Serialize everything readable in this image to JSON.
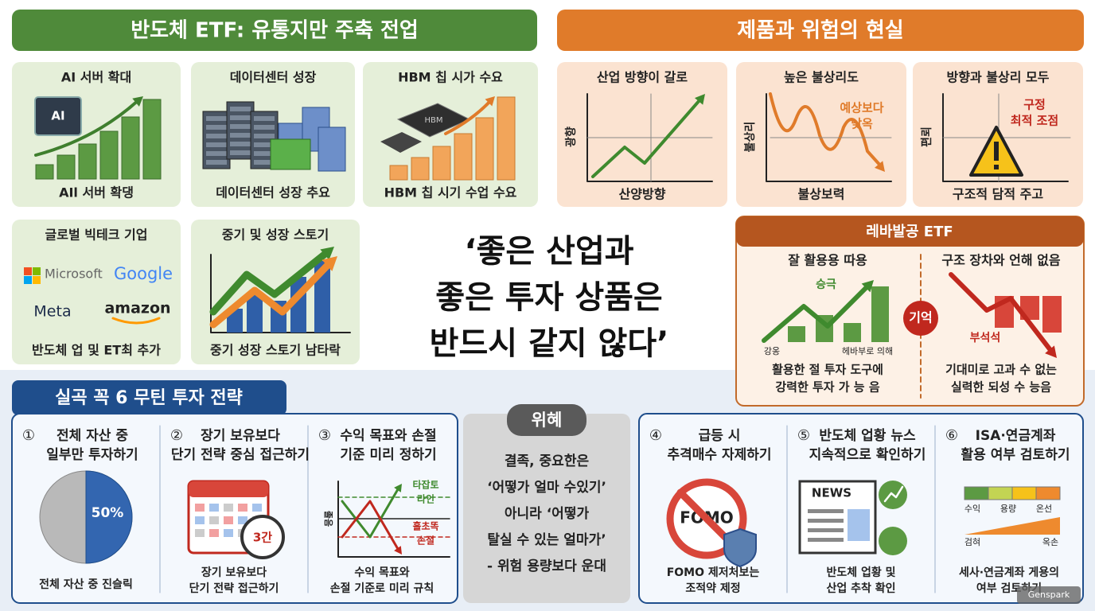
{
  "left_banner": {
    "title": "반도체 ETF: 유통지만 주축 전업"
  },
  "left_cards": [
    {
      "title": "AI 서버 확대",
      "caption": "AIl 서버 확댕",
      "icon": "AI"
    },
    {
      "title": "데이터센터 성장",
      "caption": "데이터센터 성장 추요"
    },
    {
      "title": "HBM 칩 시가 수요",
      "caption": "HBM 칩 시기 수업 수요",
      "icon": "HBM"
    },
    {
      "title": "글로벌 빅테크 기업",
      "caption": "반도체 업 및 ET최 추가",
      "logos": [
        "Microsoft",
        "Google",
        "Meta",
        "amazon"
      ]
    },
    {
      "title": "중기 및 성장 스토기",
      "caption": "중기 성장 스토기 남타락"
    }
  ],
  "center_quote": [
    "‘좋은 산업과",
    "좋은 투자 상품은",
    "반드시 같지 않다’"
  ],
  "right_banner": {
    "title": "제품과 위험의 현실"
  },
  "risk_cards": [
    {
      "title": "산업 방향이 갈로",
      "y_label": "광향",
      "x_label": "산양방향"
    },
    {
      "title": "높은 불상리도",
      "y_label": "불상리",
      "x_label": "불상보력",
      "note": [
        "예상보다",
        "낮옥"
      ]
    },
    {
      "title": "방향과 불상리 모두",
      "y_label": "편뢰",
      "x_label": "구조적 담적 주고",
      "note": [
        "구정",
        "최적 조점"
      ]
    }
  ],
  "leverage": {
    "title": "레바발공 ETF",
    "middle": "기억",
    "left": {
      "title": "잘 활용용 따용",
      "tag": "승극",
      "axis_left": "강옹",
      "axis_right": "헤바부로 의해",
      "caption": [
        "활용한 절 투자 도구에",
        "강력한 투자 가 능 음"
      ]
    },
    "right": {
      "title": "구조 장차와 언해 없음",
      "tag": "부석석",
      "caption": [
        "기대미로 고과 수 없는",
        "실력한 되성 수 능음"
      ]
    }
  },
  "strategy_banner": {
    "title": "실곡 꼭 6 무틴 투자 전략"
  },
  "strategies": [
    {
      "num": "①",
      "title": [
        "전체 자산 중",
        "일부만 투자하기"
      ],
      "pie": {
        "value": 50,
        "label": "50%"
      },
      "caption": [
        "전체 자산 중 진슬릭"
      ]
    },
    {
      "num": "②",
      "title": [
        "장기 보유보다",
        "단기 전략 중심 접근하기"
      ],
      "badge": "3간",
      "caption": [
        "장기 보유보다",
        "단기 전략 접근하기"
      ]
    },
    {
      "num": "③",
      "title": [
        "수익 목표와 손절",
        "기준 미리 정하기"
      ],
      "y_label": "졸음",
      "upper": [
        "타잡토",
        "라인"
      ],
      "lower": [
        "흘초똑",
        "손절"
      ],
      "caption": [
        "수익 목표와",
        "손절 기준로 미리 규칙"
      ]
    },
    {
      "num": "④",
      "title": [
        "급등 시",
        "추격매수 자제하기"
      ],
      "icon": "FOMO",
      "caption": [
        "FOMO 제저처보는",
        "조적약 제정"
      ]
    },
    {
      "num": "⑤",
      "title": [
        "반도체 업황 뉴스",
        "지속적으로 확인하기"
      ],
      "icon": "NEWS",
      "caption": [
        "반도체 업황 및",
        "산업 추착 확인"
      ]
    },
    {
      "num": "⑥",
      "title": [
        "ISA·연금계좌",
        "활용 여부 검토하기"
      ],
      "scale": [
        "수익",
        "용량",
        "온선"
      ],
      "scale2": [
        "검혀",
        "옥손"
      ],
      "caption": [
        "세사·연금계좌 게용의",
        "여부 검토하기"
      ]
    }
  ],
  "center_box": {
    "title": "위혜",
    "lines": [
      "결족, 중요한은",
      "‘어떻가 얼마 수있기’",
      "아니라 ‘어떻가",
      "탈실 수 있는 얼마가’",
      "- 위험 용량보다 운대"
    ]
  },
  "watermark": "Genspark"
}
